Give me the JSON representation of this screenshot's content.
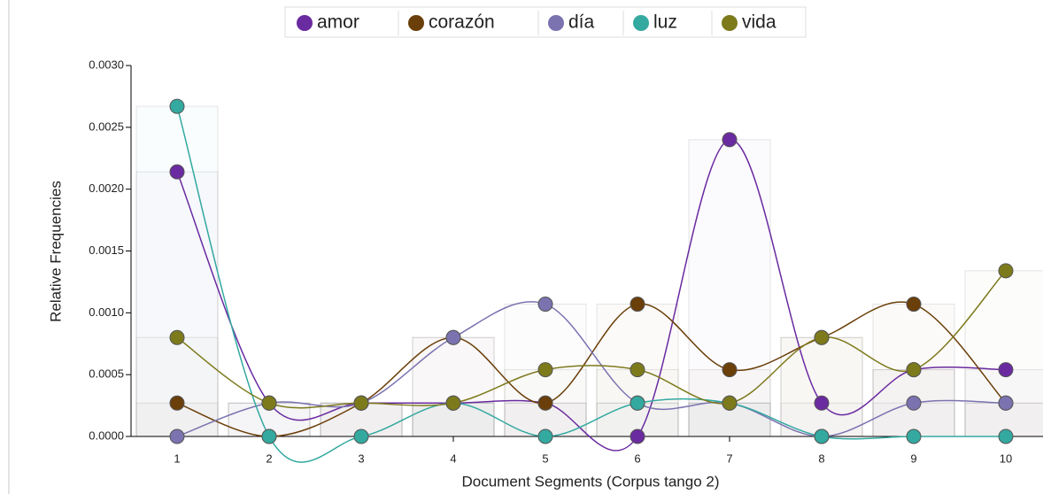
{
  "chart_data": {
    "type": "line",
    "xlabel": "Document Segments (Corpus tango 2)",
    "ylabel": "Relative Frequencies",
    "categories": [
      "1",
      "2",
      "3",
      "4",
      "5",
      "6",
      "7",
      "8",
      "9",
      "10"
    ],
    "series": [
      {
        "name": "amor",
        "color": "#6a2aa0",
        "values": [
          0.00214,
          0.00027,
          0.00027,
          0.00027,
          0.00027,
          0,
          0.0024,
          0.00027,
          0.00054,
          0.00054
        ]
      },
      {
        "name": "corazón",
        "color": "#6b3f0a",
        "values": [
          0.00027,
          0,
          0.00027,
          0.0008,
          0.00027,
          0.00107,
          0.00054,
          0.0008,
          0.00107,
          0.00027
        ]
      },
      {
        "name": "día",
        "color": "#7a73b0",
        "values": [
          0,
          0.00027,
          0.00027,
          0.0008,
          0.00107,
          0.00027,
          0.00027,
          0,
          0.00027,
          0.00027
        ]
      },
      {
        "name": "luz",
        "color": "#33a9a0",
        "values": [
          0.00267,
          0,
          0,
          0.00027,
          0,
          0.00027,
          0.00027,
          0,
          0,
          0
        ]
      },
      {
        "name": "vida",
        "color": "#7d7a1c",
        "values": [
          0.0008,
          0.00027,
          0.00027,
          0.00027,
          0.00054,
          0.00054,
          0.00027,
          0.0008,
          0.00054,
          0.00134
        ]
      }
    ],
    "ylim": [
      0,
      0.003
    ],
    "yticks": [
      {
        "value": 0,
        "label": "0.0000"
      },
      {
        "value": 0.0005,
        "label": "0.0005"
      },
      {
        "value": 0.001,
        "label": "0.0010"
      },
      {
        "value": 0.0015,
        "label": "0.0015"
      },
      {
        "value": 0.002,
        "label": "0.0020"
      },
      {
        "value": 0.0025,
        "label": "0.0025"
      },
      {
        "value": 0.003,
        "label": "0.0030"
      }
    ],
    "legend": "top"
  }
}
